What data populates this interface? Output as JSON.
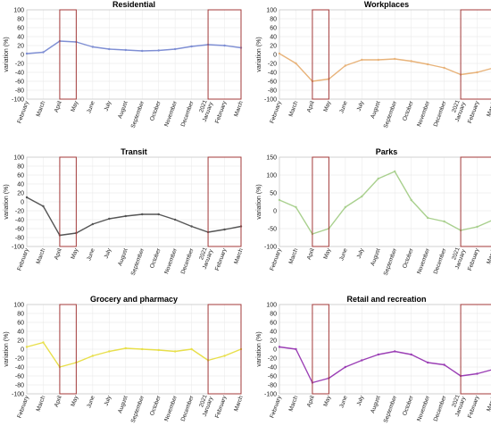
{
  "figure": {
    "months": [
      "February",
      "March",
      "April",
      "May",
      "June",
      "July",
      "August",
      "September",
      "October",
      "November",
      "December",
      "2021 January",
      "February",
      "March"
    ],
    "ylabel": "variation (%)",
    "highlight_periods": [
      {
        "start": "April",
        "end": "May"
      },
      {
        "start": "2021 January",
        "end": "March"
      }
    ]
  },
  "chart_data": [
    {
      "type": "line",
      "title": "Residential",
      "ylabel": "variation (%)",
      "ylim": [
        -100,
        100
      ],
      "yticks": [
        100,
        80,
        60,
        40,
        20,
        0,
        -20,
        -40,
        -60,
        -80,
        -100
      ],
      "color": "#7f8fd4",
      "grid": true,
      "x": [
        "February",
        "March",
        "April",
        "May",
        "June",
        "July",
        "August",
        "September",
        "October",
        "November",
        "December",
        "2021 January",
        "February",
        "March"
      ],
      "series": [
        {
          "values": [
            2,
            5,
            30,
            28,
            17,
            12,
            10,
            8,
            9,
            12,
            18,
            22,
            20,
            15
          ]
        }
      ]
    },
    {
      "type": "line",
      "title": "Workplaces",
      "ylabel": "variation (%)",
      "ylim": [
        -100,
        100
      ],
      "yticks": [
        100,
        80,
        60,
        40,
        20,
        0,
        -20,
        -40,
        -60,
        -80,
        -100
      ],
      "color": "#e8b37a",
      "grid": true,
      "x": [
        "February",
        "March",
        "April",
        "May",
        "June",
        "July",
        "August",
        "September",
        "October",
        "November",
        "December",
        "2021 January",
        "February",
        "March"
      ],
      "series": [
        {
          "values": [
            2,
            -20,
            -60,
            -55,
            -25,
            -12,
            -12,
            -10,
            -15,
            -22,
            -30,
            -45,
            -40,
            -30
          ]
        }
      ]
    },
    {
      "type": "line",
      "title": "Transit",
      "ylabel": "variation (%)",
      "ylim": [
        -100,
        100
      ],
      "yticks": [
        100,
        80,
        60,
        40,
        20,
        0,
        -20,
        -40,
        -60,
        -80,
        -100
      ],
      "color": "#555555",
      "grid": true,
      "x": [
        "February",
        "March",
        "April",
        "May",
        "June",
        "July",
        "August",
        "September",
        "October",
        "November",
        "December",
        "2021 January",
        "February",
        "March"
      ],
      "series": [
        {
          "values": [
            10,
            -10,
            -75,
            -70,
            -50,
            -38,
            -32,
            -28,
            -28,
            -40,
            -55,
            -68,
            -62,
            -55
          ]
        }
      ]
    },
    {
      "type": "line",
      "title": "Parks",
      "ylabel": "variation (%)",
      "ylim": [
        -100,
        150
      ],
      "yticks": [
        150,
        100,
        50,
        0,
        -50,
        -100
      ],
      "color": "#a9d08e",
      "grid": true,
      "x": [
        "February",
        "March",
        "April",
        "May",
        "June",
        "July",
        "August",
        "September",
        "October",
        "November",
        "December",
        "2021 January",
        "February",
        "March"
      ],
      "series": [
        {
          "values": [
            30,
            10,
            -65,
            -50,
            10,
            40,
            90,
            110,
            30,
            -20,
            -30,
            -55,
            -45,
            -25
          ]
        }
      ]
    },
    {
      "type": "line",
      "title": "Grocery and pharmacy",
      "ylabel": "variation (%)",
      "ylim": [
        -100,
        100
      ],
      "yticks": [
        100,
        80,
        60,
        40,
        20,
        0,
        -20,
        -40,
        -60,
        -80,
        -100
      ],
      "color": "#e8df4a",
      "grid": true,
      "x": [
        "February",
        "March",
        "April",
        "May",
        "June",
        "July",
        "August",
        "September",
        "October",
        "November",
        "December",
        "2021 January",
        "February",
        "March"
      ],
      "series": [
        {
          "values": [
            5,
            15,
            -40,
            -30,
            -15,
            -5,
            2,
            0,
            -2,
            -5,
            0,
            -25,
            -15,
            0
          ]
        }
      ]
    },
    {
      "type": "line",
      "title": "Retail and recreation",
      "ylabel": "variation (%)",
      "ylim": [
        -100,
        100
      ],
      "yticks": [
        100,
        80,
        60,
        40,
        20,
        0,
        -20,
        -40,
        -60,
        -80,
        -100
      ],
      "color": "#9b3fb5",
      "grid": true,
      "x": [
        "February",
        "March",
        "April",
        "May",
        "June",
        "July",
        "August",
        "September",
        "October",
        "November",
        "December",
        "2021 January",
        "February",
        "March"
      ],
      "series": [
        {
          "values": [
            5,
            0,
            -75,
            -65,
            -40,
            -25,
            -12,
            -5,
            -12,
            -30,
            -35,
            -60,
            -55,
            -45
          ]
        }
      ]
    }
  ]
}
